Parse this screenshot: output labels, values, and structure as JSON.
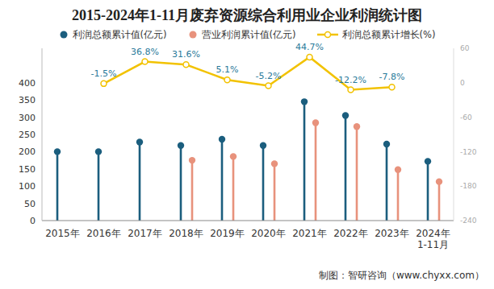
{
  "chart_data": {
    "type": "bar",
    "title": "2015-2024年1-11月废弃资源综合利用业企业利润统计图",
    "annotations": [
      "制图：智研咨询（www.chyxx.com）"
    ],
    "categories": [
      "2015年",
      "2016年",
      "2017年",
      "2018年",
      "2019年",
      "2020年",
      "2021年",
      "2022年",
      "2023年",
      "2024年\n1-11月"
    ],
    "series": [
      {
        "name": "利润总额累计值(亿元)",
        "type": "bar",
        "marker": "circle",
        "color": "#1b5e7e",
        "values": [
          200,
          200,
          228,
          218,
          236,
          218,
          345,
          305,
          222,
          172
        ]
      },
      {
        "name": "营业利润累计值(亿元)",
        "type": "bar",
        "marker": "circle",
        "color": "#e8927c",
        "values": [
          null,
          null,
          null,
          175,
          186,
          165,
          284,
          273,
          148,
          113
        ]
      },
      {
        "name": "利润总额累计增长(%)",
        "type": "line",
        "axis": "y2",
        "marker": "circle",
        "color": "#f2c200",
        "data_labels": true,
        "values": [
          null,
          -1.5,
          36.8,
          31.6,
          5.1,
          -5.2,
          44.7,
          -12.2,
          -7.8,
          null
        ],
        "value_labels": [
          null,
          "-1.5%",
          "36.8%",
          "31.6%",
          "5.1%",
          "-5.2%",
          "44.7%",
          "-12.2%",
          "-7.8%",
          null
        ]
      }
    ],
    "ylim": [
      0,
      500
    ],
    "yticks": [
      0,
      50,
      100,
      150,
      200,
      250,
      300,
      350,
      400
    ],
    "y2lim": [
      -240,
      60
    ],
    "y2ticks": [
      -240,
      -180,
      -120,
      -60,
      0,
      60
    ],
    "grid": false
  }
}
